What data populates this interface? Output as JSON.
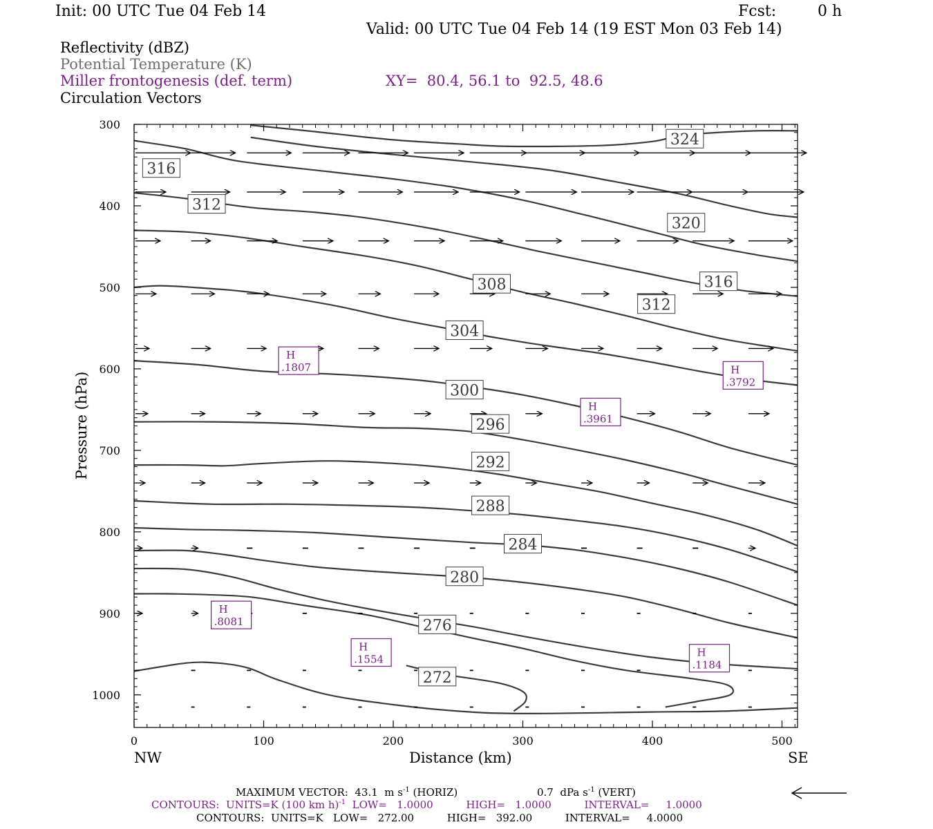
{
  "header": {
    "init": "Init: 00 UTC Tue 04 Feb 14",
    "fcst_label": "Fcst:",
    "fcst_value": "0 h",
    "valid": "Valid: 00 UTC Tue 04 Feb 14 (19 EST Mon 03 Feb 14)"
  },
  "legend": {
    "reflectivity": "Reflectivity (dBZ)",
    "theta": "Potential Temperature (K)",
    "frontogenesis": "Miller frontogenesis (def. term)",
    "xy": "XY=  80.4, 56.1 to  92.5, 48.6",
    "circulation": "Circulation Vectors"
  },
  "colors": {
    "theta": "#6e6e6e",
    "frontogenesis": "#7a1f86",
    "vectors": "#000000"
  },
  "footer": {
    "max_vector_prefix": "MAXIMUM VECTOR:  43.1  m s",
    "max_vector_exp": "-1",
    "max_vector_horiz": " (HORIZ)",
    "vert_prefix": "0.7  dPa s",
    "vert_exp": "-1",
    "vert_suffix": " (VERT)",
    "contours1_prefix": "CONTOURS:  UNITS=K (100 km h)",
    "contours1_exp": "-1",
    "contours1_suffix": "  LOW=   1.0000          HIGH=   1.0000          INTERVAL=     1.0000",
    "contours2": "CONTOURS:  UNITS=K   LOW=   272.00          HIGH=   392.00          INTERVAL=     4.0000"
  },
  "chart_data": {
    "type": "line",
    "xlabel": "Distance (km)",
    "ylabel": "Pressure (hPa)",
    "xlim": [
      0,
      512
    ],
    "ylim": [
      1040,
      300
    ],
    "x_ticks": [
      0,
      100,
      200,
      300,
      400,
      500
    ],
    "y_ticks": [
      300,
      400,
      500,
      600,
      700,
      800,
      900,
      1000
    ],
    "end_labels": {
      "left": "NW",
      "right": "SE"
    },
    "theta_contours": [
      {
        "level": "272",
        "label_at": [
          234,
          978
        ],
        "points": [
          [
            0,
            971
          ],
          [
            40,
            961
          ],
          [
            65,
            961
          ],
          [
            88,
            967
          ],
          [
            110,
            981
          ],
          [
            150,
            1000
          ],
          [
            200,
            1012
          ],
          [
            250,
            1020
          ],
          [
            300,
            1023
          ],
          [
            400,
            1021
          ],
          [
            455,
            1020
          ],
          [
            512,
            1016
          ]
        ]
      },
      {
        "level": "",
        "label_at": null,
        "points": [
          [
            293,
            1020
          ],
          [
            302,
            1008
          ],
          [
            300,
            996
          ],
          [
            280,
            985
          ],
          [
            240,
            975
          ],
          [
            210,
            964
          ]
        ]
      },
      {
        "level": "",
        "label_at": null,
        "points": [
          [
            410,
            1015
          ],
          [
            435,
            1008
          ],
          [
            460,
            1000
          ],
          [
            458,
            988
          ],
          [
            430,
            980
          ],
          [
            380,
            970
          ],
          [
            340,
            958
          ],
          [
            300,
            943
          ],
          [
            260,
            930
          ],
          [
            220,
            916
          ],
          [
            180,
            902
          ],
          [
            130,
            890
          ],
          [
            90,
            880
          ],
          [
            55,
            877
          ],
          [
            25,
            876
          ],
          [
            0,
            876
          ]
        ]
      },
      {
        "level": "276",
        "label_at": [
          234,
          914
        ],
        "points": [
          [
            0,
            845
          ],
          [
            40,
            846
          ],
          [
            75,
            855
          ],
          [
            110,
            870
          ],
          [
            150,
            885
          ],
          [
            200,
            900
          ],
          [
            260,
            916
          ],
          [
            300,
            928
          ],
          [
            350,
            942
          ],
          [
            400,
            954
          ],
          [
            450,
            962
          ],
          [
            512,
            968
          ]
        ]
      },
      {
        "level": "280",
        "label_at": [
          255,
          855
        ],
        "points": [
          [
            0,
            823
          ],
          [
            40,
            823
          ],
          [
            70,
            828
          ],
          [
            100,
            835
          ],
          [
            140,
            843
          ],
          [
            180,
            848
          ],
          [
            220,
            852
          ],
          [
            260,
            856
          ],
          [
            300,
            862
          ],
          [
            340,
            870
          ],
          [
            380,
            880
          ],
          [
            420,
            895
          ],
          [
            460,
            912
          ],
          [
            512,
            930
          ]
        ]
      },
      {
        "level": "284",
        "label_at": [
          300,
          815
        ],
        "points": [
          [
            0,
            795
          ],
          [
            40,
            797
          ],
          [
            80,
            798
          ],
          [
            140,
            801
          ],
          [
            200,
            807
          ],
          [
            260,
            813
          ],
          [
            300,
            816
          ],
          [
            340,
            822
          ],
          [
            380,
            832
          ],
          [
            420,
            845
          ],
          [
            460,
            862
          ],
          [
            512,
            890
          ]
        ]
      },
      {
        "level": "288",
        "label_at": [
          275,
          768
        ],
        "points": [
          [
            0,
            762
          ],
          [
            60,
            766
          ],
          [
            120,
            766
          ],
          [
            180,
            768
          ],
          [
            220,
            770
          ],
          [
            260,
            774
          ],
          [
            300,
            779
          ],
          [
            340,
            786
          ],
          [
            380,
            794
          ],
          [
            420,
            806
          ],
          [
            460,
            822
          ],
          [
            512,
            849
          ]
        ]
      },
      {
        "level": "292",
        "label_at": [
          275,
          714
        ],
        "points": [
          [
            0,
            718
          ],
          [
            40,
            718
          ],
          [
            70,
            719
          ],
          [
            100,
            716
          ],
          [
            150,
            713
          ],
          [
            200,
            716
          ],
          [
            240,
            721
          ],
          [
            280,
            729
          ],
          [
            320,
            740
          ],
          [
            360,
            751
          ],
          [
            400,
            765
          ],
          [
            440,
            779
          ],
          [
            480,
            797
          ],
          [
            512,
            817
          ]
        ]
      },
      {
        "level": "296",
        "label_at": [
          275,
          668
        ],
        "points": [
          [
            0,
            665
          ],
          [
            60,
            665
          ],
          [
            120,
            667
          ],
          [
            180,
            672
          ],
          [
            220,
            673
          ],
          [
            260,
            677
          ],
          [
            300,
            687
          ],
          [
            340,
            699
          ],
          [
            380,
            712
          ],
          [
            420,
            727
          ],
          [
            460,
            744
          ],
          [
            512,
            766
          ]
        ]
      },
      {
        "level": "300",
        "label_at": [
          255,
          626
        ],
        "points": [
          [
            0,
            590
          ],
          [
            50,
            595
          ],
          [
            100,
            603
          ],
          [
            160,
            607
          ],
          [
            220,
            614
          ],
          [
            260,
            622
          ],
          [
            300,
            632
          ],
          [
            340,
            645
          ],
          [
            380,
            660
          ],
          [
            420,
            677
          ],
          [
            460,
            697
          ],
          [
            512,
            718
          ]
        ]
      },
      {
        "level": "304",
        "label_at": [
          255,
          553
        ],
        "points": [
          [
            0,
            500
          ],
          [
            20,
            498
          ],
          [
            45,
            500
          ],
          [
            90,
            506
          ],
          [
            150,
            521
          ],
          [
            200,
            538
          ],
          [
            240,
            550
          ],
          [
            280,
            562
          ],
          [
            320,
            572
          ],
          [
            360,
            581
          ],
          [
            400,
            592
          ],
          [
            440,
            604
          ],
          [
            480,
            614
          ],
          [
            512,
            620
          ]
        ]
      },
      {
        "level": "308",
        "label_at": [
          276,
          496
        ],
        "points": [
          [
            0,
            430
          ],
          [
            40,
            432
          ],
          [
            80,
            438
          ],
          [
            130,
            450
          ],
          [
            180,
            462
          ],
          [
            220,
            474
          ],
          [
            260,
            490
          ],
          [
            300,
            506
          ],
          [
            340,
            520
          ],
          [
            380,
            535
          ],
          [
            420,
            551
          ],
          [
            460,
            565
          ],
          [
            512,
            578
          ]
        ]
      },
      {
        "level": "312",
        "label_at": [
          56,
          398
        ],
        "points": [
          [
            0,
            384
          ],
          [
            40,
            391
          ],
          [
            90,
            402
          ],
          [
            140,
            408
          ],
          [
            180,
            415
          ],
          [
            230,
            428
          ],
          [
            270,
            441
          ],
          [
            310,
            455
          ],
          [
            350,
            468
          ],
          [
            390,
            481
          ],
          [
            430,
            494
          ],
          [
            470,
            504
          ],
          [
            512,
            511
          ]
        ]
      },
      {
        "level": "312",
        "label_at": [
          403,
          521
        ],
        "points": null
      },
      {
        "level": "316",
        "label_at": [
          21,
          354
        ],
        "points": [
          [
            0,
            320
          ],
          [
            40,
            330
          ],
          [
            80,
            345
          ],
          [
            150,
            358
          ],
          [
            200,
            367
          ],
          [
            250,
            378
          ],
          [
            300,
            393
          ],
          [
            350,
            412
          ],
          [
            400,
            432
          ],
          [
            440,
            448
          ],
          [
            480,
            460
          ],
          [
            512,
            468
          ]
        ]
      },
      {
        "level": "316",
        "label_at": [
          451,
          493
        ],
        "points": null
      },
      {
        "level": "320",
        "label_at": [
          426,
          421
        ],
        "points": [
          [
            90,
            316
          ],
          [
            140,
            327
          ],
          [
            200,
            337
          ],
          [
            260,
            346
          ],
          [
            320,
            356
          ],
          [
            370,
            370
          ],
          [
            420,
            385
          ],
          [
            460,
            400
          ],
          [
            490,
            410
          ],
          [
            512,
            414
          ]
        ]
      },
      {
        "level": "324",
        "label_at": [
          425,
          318
        ],
        "points": [
          [
            90,
            301
          ],
          [
            140,
            309
          ],
          [
            200,
            319
          ],
          [
            250,
            324
          ],
          [
            290,
            327
          ],
          [
            360,
            326
          ],
          [
            400,
            321
          ],
          [
            420,
            314
          ],
          [
            440,
            311
          ],
          [
            480,
            308
          ],
          [
            512,
            308
          ]
        ]
      }
    ],
    "frontogenesis_maxima": [
      {
        "label": "H",
        "value": ".1807",
        "x": 127,
        "y": 590
      },
      {
        "label": "H",
        "value": ".3961",
        "x": 360,
        "y": 653
      },
      {
        "label": "H",
        "value": ".3792",
        "x": 470,
        "y": 608
      },
      {
        "label": "H",
        "value": ".8081",
        "x": 75,
        "y": 902
      },
      {
        "label": "H",
        "value": ".1554",
        "x": 183,
        "y": 948
      },
      {
        "label": "H",
        "value": ".1184",
        "x": 444,
        "y": 955
      }
    ],
    "vector_field": {
      "x": [
        0,
        43,
        86,
        129,
        172,
        215,
        258,
        301,
        344,
        387,
        430,
        473
      ],
      "rows": [
        {
          "p": 335,
          "u": [
            40,
            32,
            32,
            34,
            36,
            36,
            41,
            43,
            42,
            42,
            42,
            42
          ]
        },
        {
          "p": 383,
          "u": [
            22,
            28,
            28,
            30,
            32,
            32,
            36,
            37,
            38,
            40,
            40,
            40
          ]
        },
        {
          "p": 443,
          "u": [
            18,
            14,
            22,
            22,
            22,
            22,
            24,
            26,
            28,
            30,
            30,
            32
          ]
        },
        {
          "p": 508,
          "u": [
            15,
            17,
            16,
            17,
            16,
            18,
            18,
            18,
            20,
            22,
            22,
            24
          ]
        },
        {
          "p": 575,
          "u": [
            10,
            14,
            14,
            15,
            15,
            18,
            16,
            16,
            16,
            18,
            18,
            18
          ]
        },
        {
          "p": 655,
          "u": [
            9,
            10,
            10,
            11,
            12,
            12,
            12,
            12,
            12,
            13,
            13,
            15
          ]
        },
        {
          "p": 740,
          "u": [
            7,
            10,
            11,
            11,
            11,
            11,
            8,
            8,
            8,
            9,
            11,
            12
          ]
        },
        {
          "p": 820,
          "u": [
            5,
            5,
            4,
            4,
            4,
            4,
            4,
            4,
            4,
            4,
            4,
            5
          ]
        },
        {
          "p": 900,
          "u": [
            5,
            5,
            4,
            3,
            3,
            2,
            2,
            2,
            2,
            2,
            2,
            2
          ]
        },
        {
          "p": 970,
          "u": [
            3,
            3,
            3,
            2,
            2,
            2,
            2,
            2,
            2,
            2,
            2,
            2
          ]
        },
        {
          "p": 1015,
          "u": [
            2,
            2,
            2,
            2,
            2,
            2,
            2,
            2,
            2,
            2,
            2,
            2
          ]
        }
      ]
    }
  }
}
